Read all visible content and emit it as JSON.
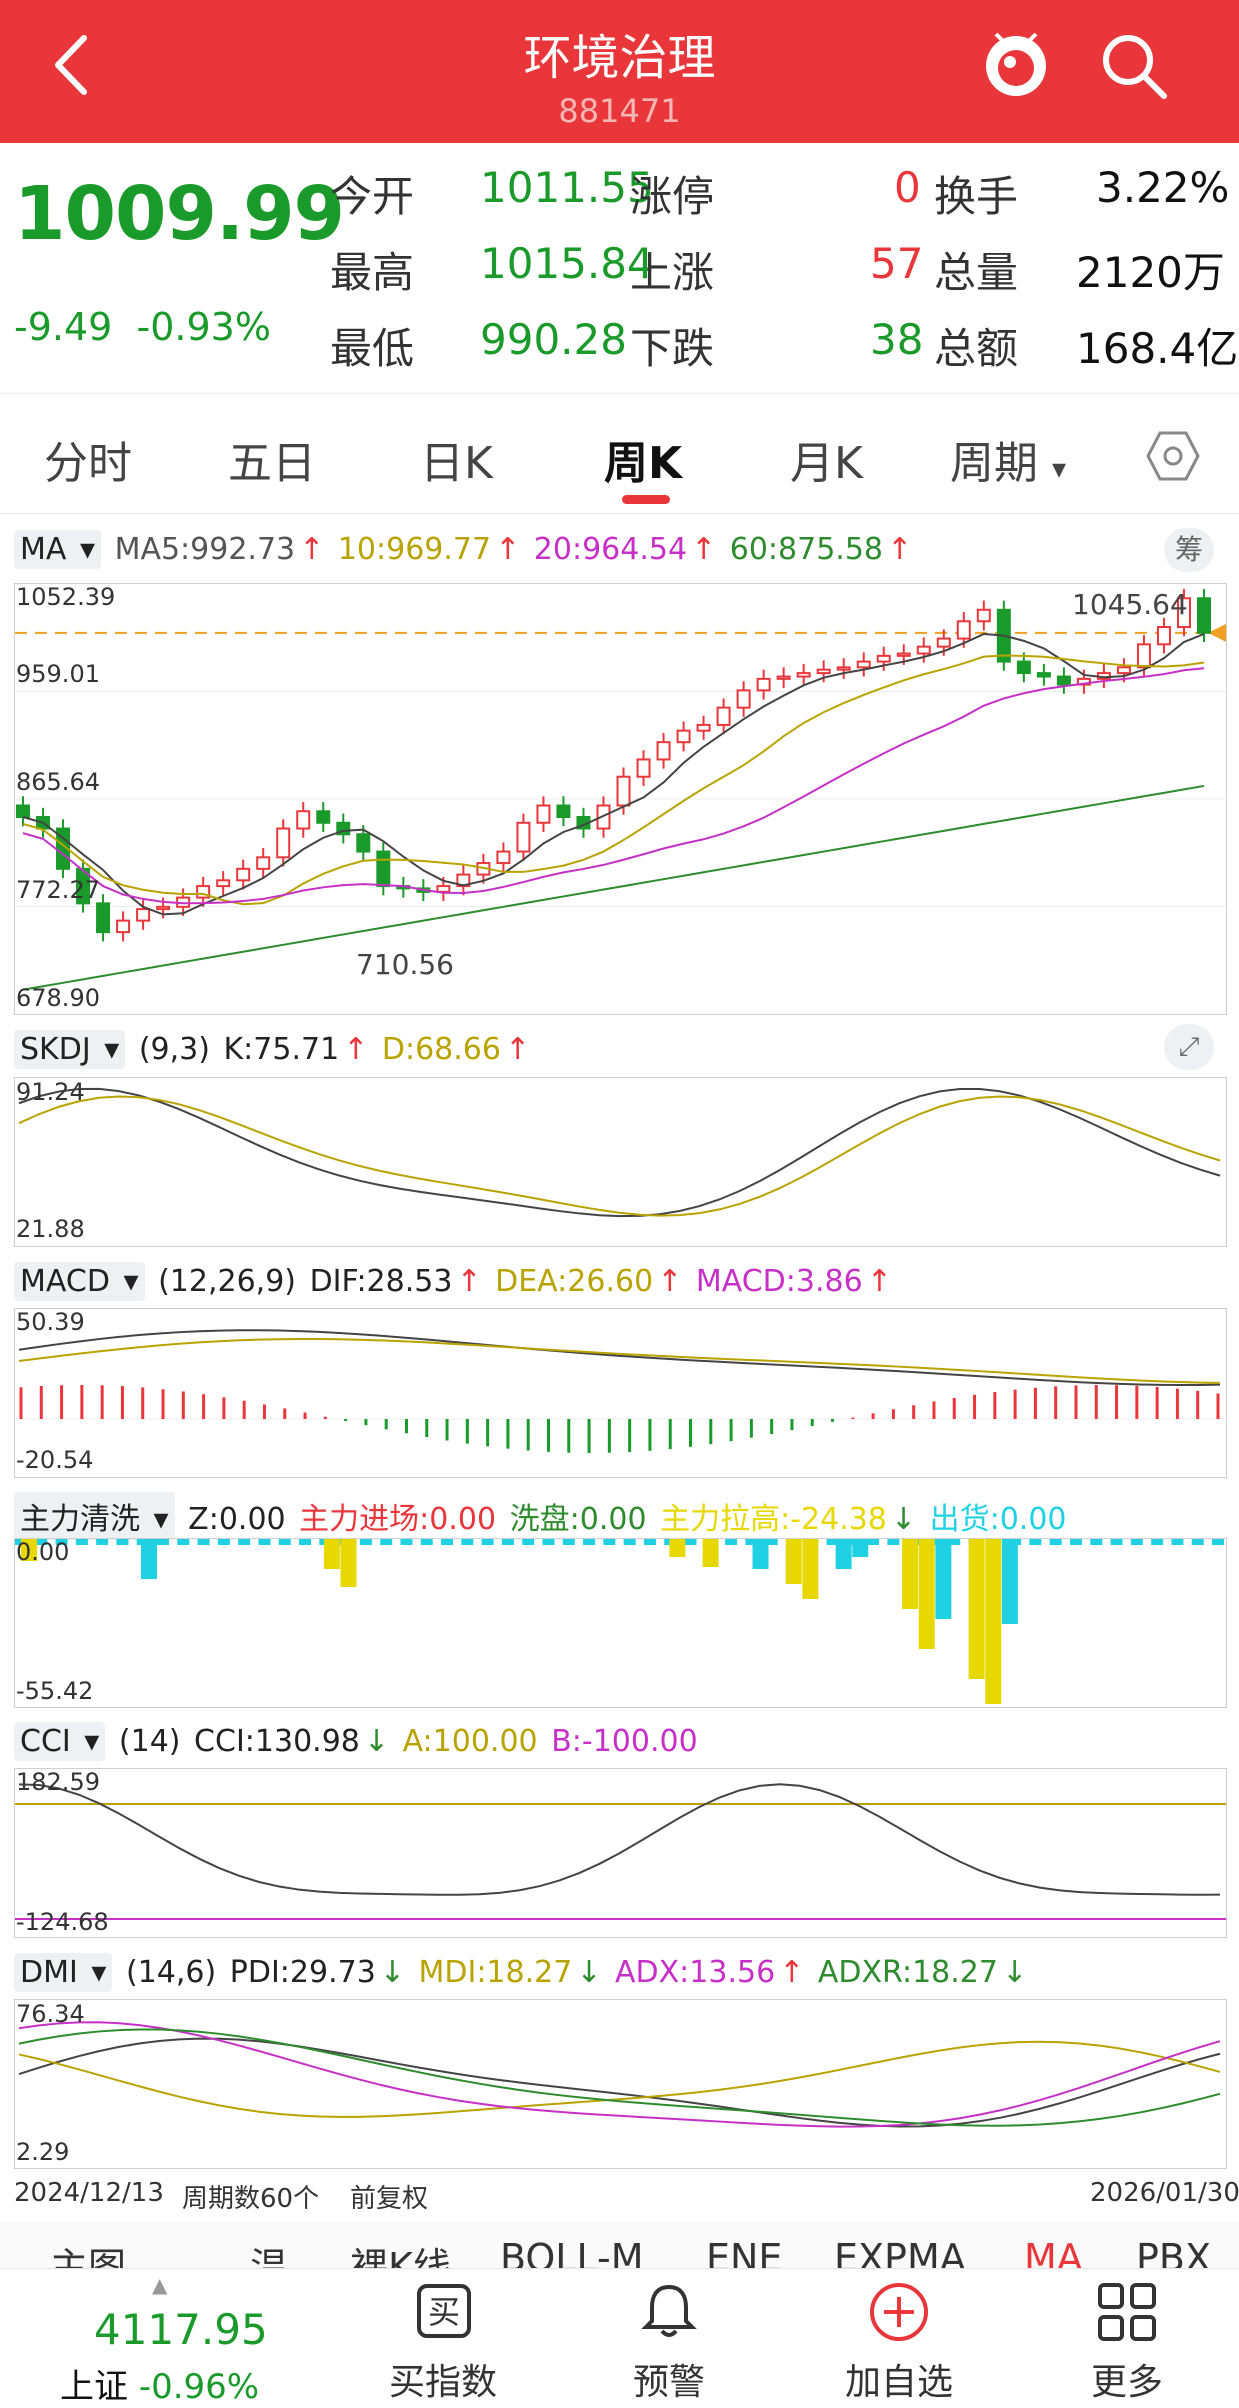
{
  "header": {
    "title": "环境治理",
    "code": "881471"
  },
  "quote": {
    "price": "1009.99",
    "change": "-9.49",
    "change_pct": "-0.93%",
    "rows": [
      {
        "l1": "今开",
        "v1": "1011.55",
        "l2": "涨停",
        "v2": "0",
        "l3": "换手",
        "v3": "3.22%"
      },
      {
        "l1": "最高",
        "v1": "1015.84",
        "l2": "上涨",
        "v2": "57",
        "l3": "总量",
        "v3": "2120万"
      },
      {
        "l1": "最低",
        "v1": "990.28",
        "l2": "下跌",
        "v2": "38",
        "l3": "总额",
        "v3": "168.4亿"
      }
    ]
  },
  "tabs": [
    "分时",
    "五日",
    "日K",
    "周K",
    "月K",
    "周期"
  ],
  "active_tab": "周K",
  "ma": {
    "name": "MA",
    "ma5": "MA5:992.73",
    "ma10": "10:969.77",
    "ma20": "20:964.54",
    "ma60": "60:875.58",
    "chip": "筹",
    "axis": [
      "1052.39",
      "959.01",
      "865.64",
      "772.27",
      "678.90"
    ],
    "high_label": "1045.64",
    "low_label": "710.56"
  },
  "skdj": {
    "name": "SKDJ",
    "params": "(9,3)",
    "k": "K:75.71",
    "d": "D:68.66",
    "axis": [
      "91.24",
      "21.88"
    ]
  },
  "macd": {
    "name": "MACD",
    "params": "(12,26,9)",
    "dif": "DIF:28.53",
    "dea": "DEA:26.60",
    "macd": "MACD:3.86",
    "axis": [
      "50.39",
      "-20.54"
    ]
  },
  "zljx": {
    "name": "主力清洗",
    "z": "Z:0.00",
    "jc": "主力进场:0.00",
    "xp": "洗盘:0.00",
    "lg": "主力拉高:-24.38",
    "ch": "出货:0.00",
    "axis": [
      "0.00",
      "-55.42"
    ]
  },
  "cci": {
    "name": "CCI",
    "params": "(14)",
    "cci": "CCI:130.98",
    "a": "A:100.00",
    "b": "B:-100.00",
    "axis": [
      "182.59",
      "-124.68"
    ]
  },
  "dmi": {
    "name": "DMI",
    "params": "(14,6)",
    "pdi": "PDI:29.73",
    "mdi": "MDI:18.27",
    "adx": "ADX:13.56",
    "adxr": "ADXR:18.27",
    "axis": [
      "76.34",
      "2.29"
    ]
  },
  "dates": {
    "start": "2024/12/13",
    "count": "周期数60个",
    "adj": "前复权",
    "end": "2026/01/30"
  },
  "strip": [
    "主图",
    "温",
    "裸K线",
    "BOLL-M",
    "ENE",
    "EXPMA",
    "MA",
    "PBX"
  ],
  "bottom": {
    "index_value": "4117.95",
    "index_name": "上证",
    "index_pct": "-0.96%",
    "buttons": [
      "买指数",
      "预警",
      "加自选",
      "更多"
    ]
  },
  "colors": {
    "header": "#e8363a",
    "up": "#e8363a",
    "down": "#1a9a2a",
    "ma10": "#b9a300",
    "ma20": "#c630c6",
    "ma60": "#2e8b2e"
  },
  "chart_data": {
    "type": "line",
    "title": "",
    "ylim": [
      678.9,
      1052.39
    ],
    "x_range": [
      "2024/12/13",
      "2026/01/30"
    ],
    "series": [
      {
        "name": "MA5",
        "last": 992.73
      },
      {
        "name": "10",
        "last": 969.77
      },
      {
        "name": "20",
        "last": 964.54
      },
      {
        "name": "60",
        "last": 875.58
      }
    ],
    "annotations": [
      "1045.64",
      "710.56"
    ]
  }
}
